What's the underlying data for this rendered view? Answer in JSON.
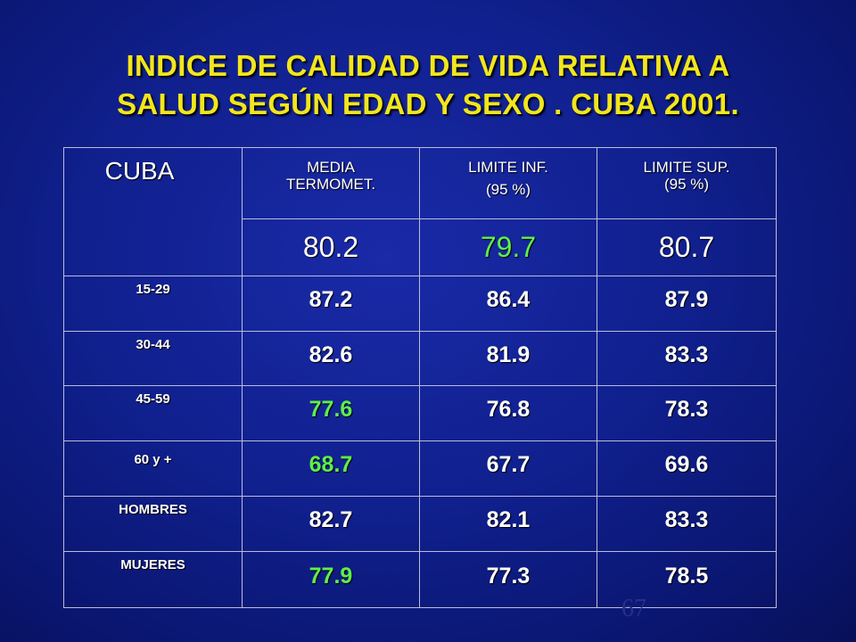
{
  "title": {
    "line1": "INDICE DE CALIDAD DE VIDA RELATIVA A",
    "line2": "SALUD SEGÚN EDAD Y SEXO .  CUBA 2001."
  },
  "table": {
    "corner": "CUBA",
    "headers": [
      {
        "line1": "MEDIA",
        "line2": "TERMOMET."
      },
      {
        "line1": "LIMITE INF.",
        "line2": "(95 %)"
      },
      {
        "line1": "LIMITE SUP.",
        "line2": "(95 %)"
      }
    ],
    "overall": [
      "80.2",
      "79.7",
      "80.7"
    ],
    "rows": [
      {
        "label": "15-29",
        "values": [
          "87.2",
          "86.4",
          "87.9"
        ]
      },
      {
        "label": "30-44",
        "values": [
          "82.6",
          "81.9",
          "83.3"
        ]
      },
      {
        "label": "45-59",
        "values": [
          "77.6",
          "76.8",
          "78.3"
        ]
      },
      {
        "label": "60 y +",
        "values": [
          "68.7",
          "67.7",
          "69.6"
        ]
      },
      {
        "label": "HOMBRES",
        "values": [
          "82.7",
          "82.1",
          "83.3"
        ]
      },
      {
        "label": "MUJERES",
        "values": [
          "77.9",
          "77.3",
          "78.5"
        ]
      }
    ],
    "highlight_color": "#5ef04a"
  },
  "page_number": "67"
}
